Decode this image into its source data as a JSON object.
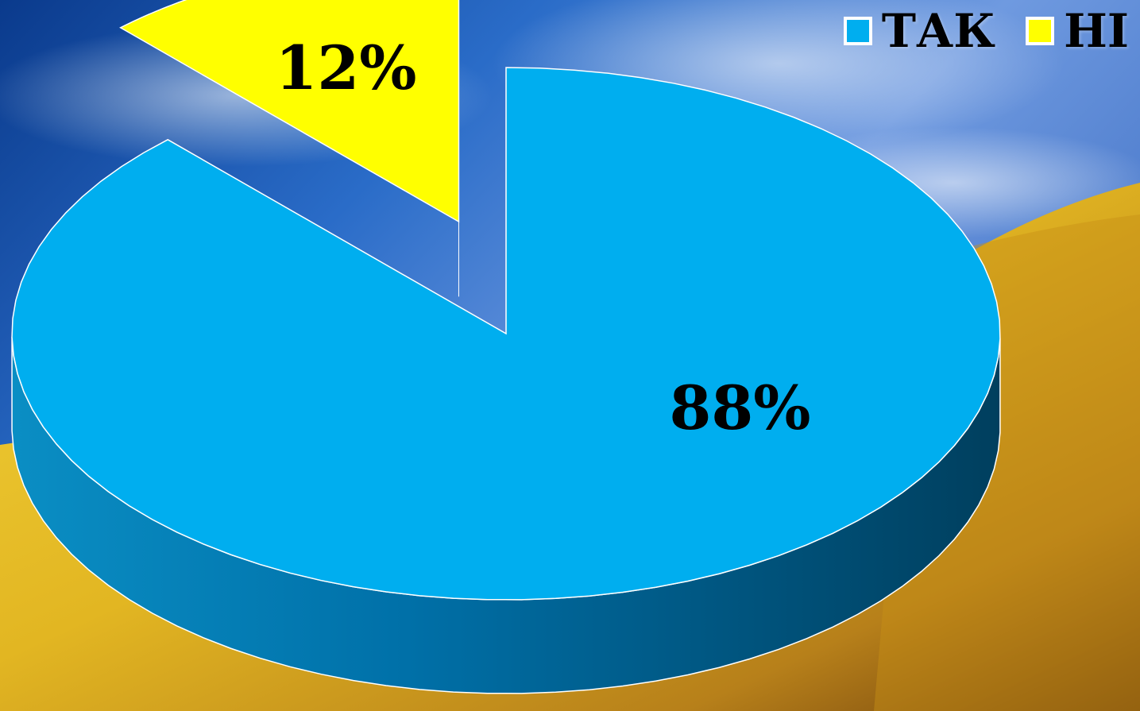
{
  "chart_data": {
    "type": "pie",
    "categories": [
      "ТАК",
      "НІ"
    ],
    "values": [
      88,
      12
    ],
    "data_labels": [
      "88%",
      "12%"
    ],
    "colors": [
      "#00aeef",
      "#ffff00"
    ],
    "legend": {
      "position": "top-right",
      "entries": [
        "ТАК",
        "НІ"
      ]
    },
    "title": "",
    "three_d": true,
    "exploded_slice": "НІ"
  },
  "background": {
    "description_colors": [
      "#1c4fa8",
      "#7ea8e6",
      "#e0b820",
      "#b8860b"
    ]
  }
}
